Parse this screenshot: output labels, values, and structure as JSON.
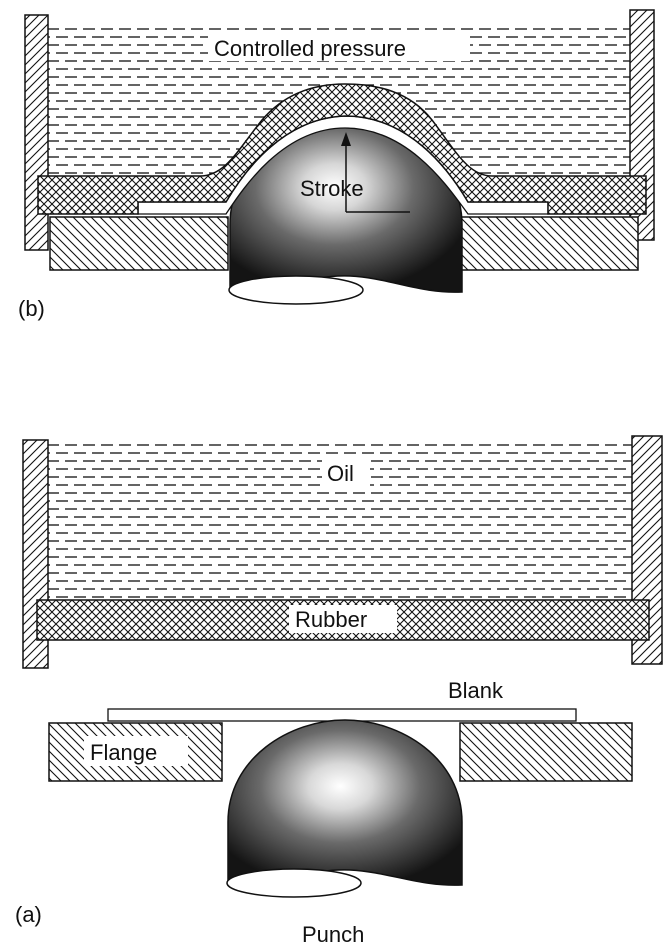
{
  "diagram_b": {
    "panel_label": "(b)",
    "pressure_label": "Controlled pressure",
    "stroke_label": "Stroke"
  },
  "diagram_a": {
    "panel_label": "(a)",
    "oil_label": "Oil",
    "rubber_label": "Rubber",
    "blank_label": "Blank",
    "flange_label": "Flange",
    "punch_label": "Punch"
  },
  "colors": {
    "ink": "#111111",
    "punch_highlight": "#ffffff",
    "punch_dark": "#1a1a1a",
    "background": "#ffffff"
  }
}
